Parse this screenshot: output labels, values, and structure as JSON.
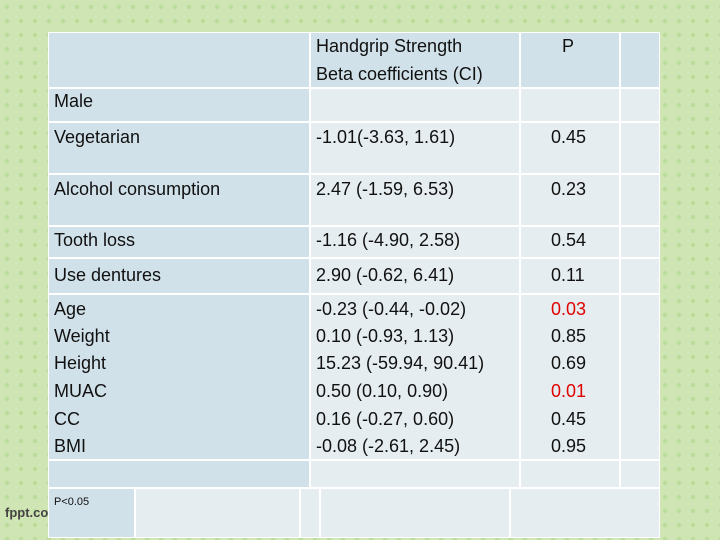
{
  "table": {
    "header": {
      "col2": [
        "Handgrip Strength",
        "Beta coefficients (CI)"
      ],
      "col3": "P"
    },
    "section": "Male",
    "rows": [
      {
        "label": "Vegetarian",
        "beta": "-1.01(-3.63, 1.61)",
        "p": "0.45"
      },
      {
        "label": "Alcohol consumption",
        "beta": "2.47 (-1.59, 6.53)",
        "p": "0.23"
      },
      {
        "label": "Tooth loss",
        "beta": "-1.16 (-4.90, 2.58)",
        "p": "0.54"
      },
      {
        "label": "Use dentures",
        "beta": "2.90 (-0.62, 6.41)",
        "p": "0.11"
      },
      {
        "label": "Age",
        "beta": "-0.23 (-0.44, -0.02)",
        "p": "0.03",
        "color": "#e00000"
      },
      {
        "label": "Weight",
        "beta": "0.10 (-0.93, 1.13)",
        "p": "0.85"
      },
      {
        "label": "Height",
        "beta": "15.23 (-59.94, 90.41)",
        "p": "0.69"
      },
      {
        "label": "MUAC",
        "beta": "0.50 (0.10, 0.90)",
        "p": "0.01",
        "color": "#e00000"
      },
      {
        "label": "CC",
        "beta": "0.16 (-0.27, 0.60)",
        "p": "0.45"
      },
      {
        "label": "BMI",
        "beta": "-0.08 (-2.61, 2.45)",
        "p": "0.95"
      }
    ],
    "footnote": "P<0.05"
  },
  "footer": "fppt.com"
}
